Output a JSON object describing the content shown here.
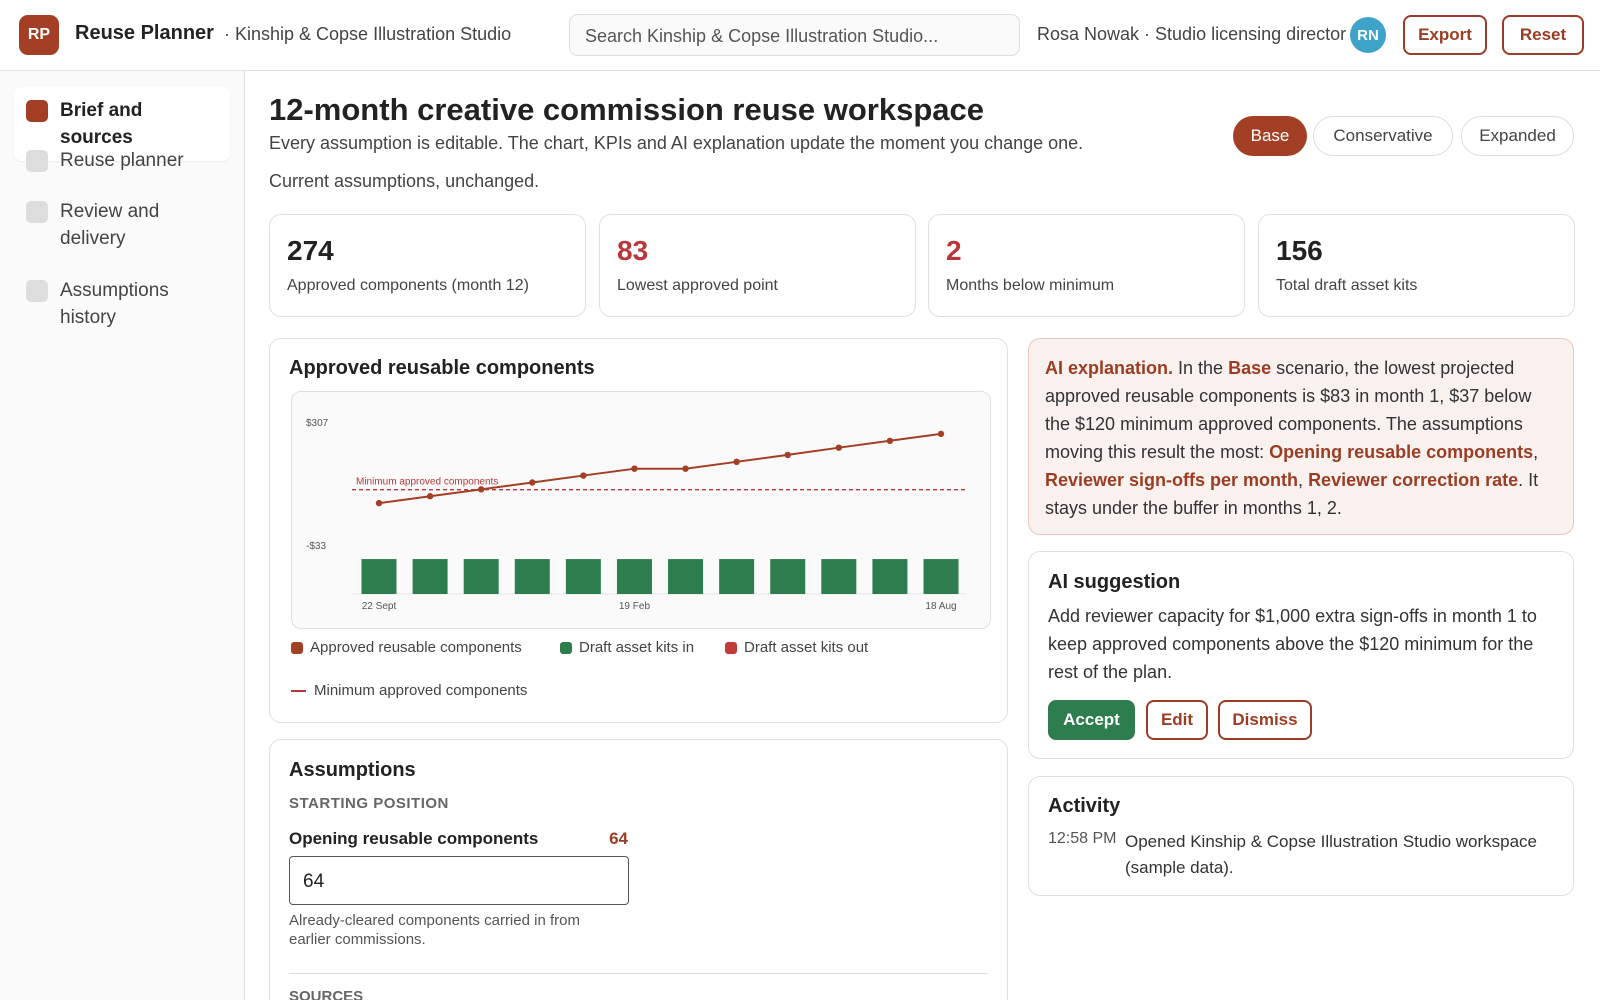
{
  "header": {
    "logo": "RP",
    "app_name": "Reuse Planner",
    "workspace": "· Kinship & Copse Illustration Studio",
    "search_placeholder": "Search Kinship & Copse Illustration Studio...",
    "user": "Rosa Nowak · Studio licensing director",
    "avatar": "RN",
    "buttons": [
      "Export",
      "Reset"
    ]
  },
  "sidebar": {
    "items": [
      "Brief and sources",
      "Reuse planner",
      "Review and delivery",
      "Assumptions history"
    ]
  },
  "main": {
    "title": "12-month creative commission reuse workspace",
    "subtitle": "Every assumption is editable. The chart, KPIs and AI explanation update the moment you change one.",
    "status": "Current assumptions, unchanged.",
    "scenarios": [
      "Base",
      "Conservative",
      "Expanded"
    ]
  },
  "kpis": [
    {
      "value": "274",
      "label": "Approved components (month 12)"
    },
    {
      "value": "83",
      "label": "Lowest approved point"
    },
    {
      "value": "2",
      "label": "Months below minimum"
    },
    {
      "value": "156",
      "label": "Total draft asset kits"
    }
  ],
  "chart_data": {
    "type": "combo",
    "title": "Approved reusable components",
    "categories": [
      "22 Sept",
      null,
      null,
      null,
      null,
      "19 Feb",
      null,
      null,
      null,
      null,
      null,
      "18 Aug"
    ],
    "series": [
      {
        "name": "Approved reusable components",
        "type": "line",
        "color": "#a23f25",
        "values": [
          83,
          102,
          121,
          140,
          159,
          178,
          178,
          197,
          216,
          236,
          255,
          274
        ]
      },
      {
        "name": "Draft asset kits in",
        "type": "bar",
        "axis": "y2",
        "color": "#2e7d4f",
        "values": [
          13,
          13,
          13,
          13,
          13,
          13,
          13,
          13,
          13,
          13,
          13,
          13
        ]
      },
      {
        "name": "Draft asset kits out",
        "type": "bar",
        "axis": "y2",
        "color": "#c23b3b"
      }
    ],
    "ylim": [
      -168,
      329
    ],
    "yticks": [
      {
        "value": 307,
        "label": "$307"
      },
      {
        "value": -33,
        "label": "-$33"
      }
    ],
    "y2lim": [
      0,
      67
    ],
    "reference_line": {
      "value": 120,
      "label": "Minimum approved components",
      "color": "#b9373a"
    }
  },
  "ai_explanation": {
    "parts": [
      "AI explanation.",
      " In the ",
      "Base",
      " scenario, the lowest projected approved reusable components is $83 in month 1, $37 below the $120 minimum approved components. The assumptions moving this result the most: ",
      "Opening reusable components",
      ", ",
      "Reviewer sign-offs per month",
      ", ",
      "Reviewer correction rate",
      ". It stays under the buffer in months 1, 2."
    ]
  },
  "ai_suggestion": {
    "title": "AI suggestion",
    "text": "Add reviewer capacity for $1,000 extra sign-offs in month 1 to keep approved components above the $120 minimum for the rest of the plan.",
    "buttons": [
      "Accept",
      "Edit",
      "Dismiss"
    ]
  },
  "activity": {
    "title": "Activity",
    "items": [
      {
        "time": "12:58 PM",
        "text": "Opened Kinship & Copse Illustration Studio workspace (sample data)."
      }
    ]
  },
  "assumptions": {
    "title": "Assumptions",
    "section": "STARTING POSITION",
    "field_label": "Opening reusable components",
    "field_value": "64",
    "field_help": "Already-cleared components carried in from earlier commissions.",
    "next_section": "SOURCES"
  }
}
